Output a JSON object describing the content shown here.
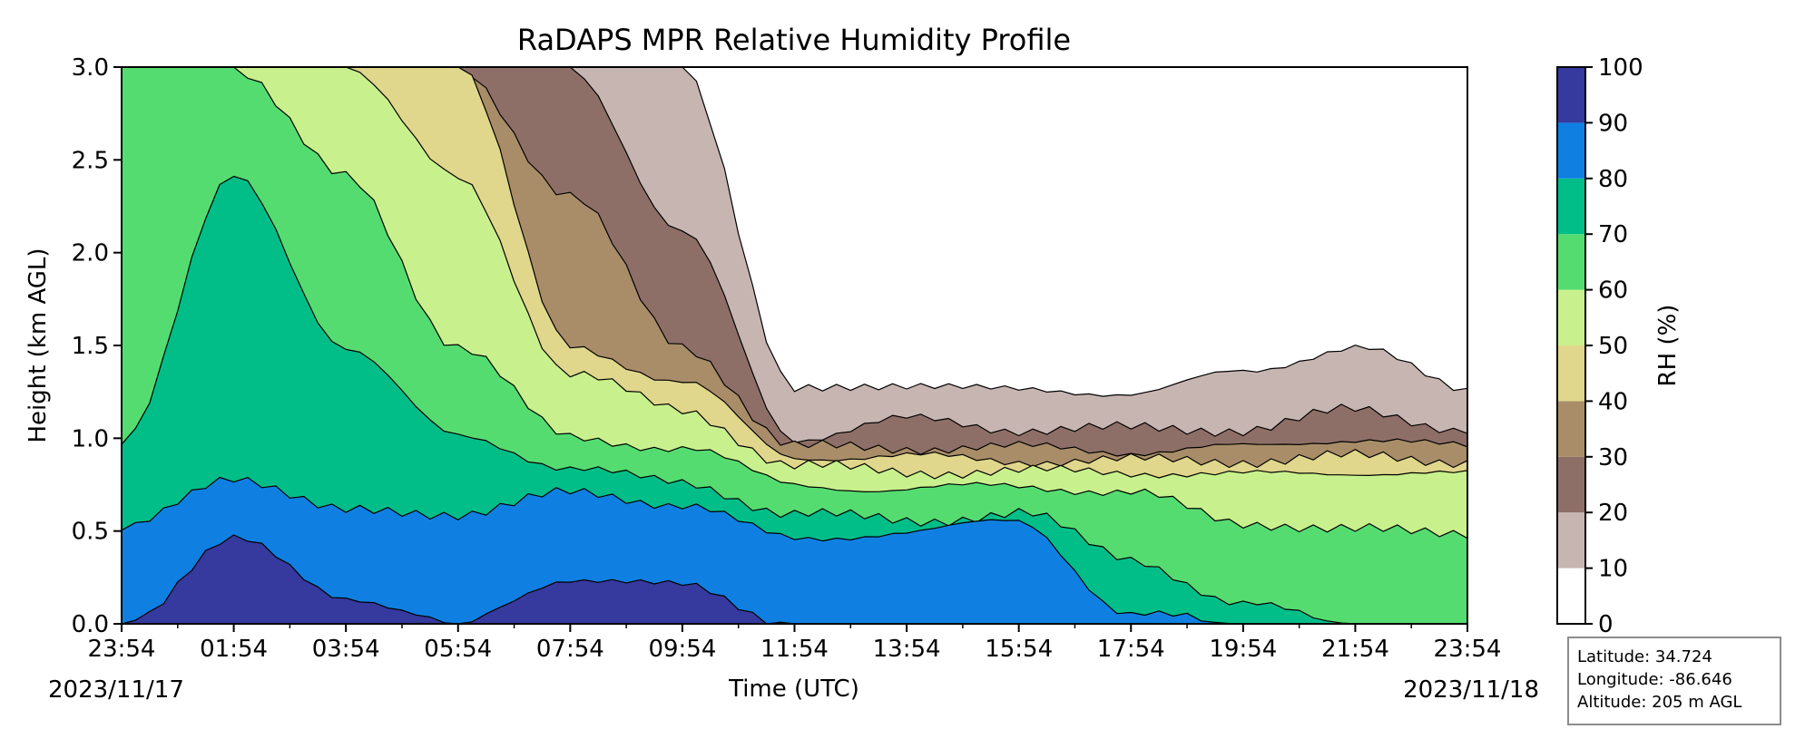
{
  "chart_data": {
    "type": "contourf",
    "title": "RaDAPS MPR Relative Humidity Profile",
    "xlabel": "Time (UTC)",
    "ylabel": "Height (km AGL)",
    "x_ticks": [
      "23:54",
      "01:54",
      "03:54",
      "05:54",
      "07:54",
      "09:54",
      "11:54",
      "13:54",
      "15:54",
      "17:54",
      "19:54",
      "21:54",
      "23:54"
    ],
    "start_date": "2023/11/17",
    "end_date": "2023/11/18",
    "y_ticks": [
      "0.0",
      "0.5",
      "1.0",
      "1.5",
      "2.0",
      "2.5",
      "3.0"
    ],
    "ylim": [
      0,
      3
    ],
    "colorbar": {
      "label": "RH (%)",
      "ticks": [
        "0",
        "10",
        "20",
        "30",
        "40",
        "50",
        "60",
        "70",
        "80",
        "90",
        "100"
      ],
      "levels": [
        {
          "range": [
            0,
            10
          ],
          "color": "#ffffff"
        },
        {
          "range": [
            10,
            20
          ],
          "color": "#c7b5b2"
        },
        {
          "range": [
            20,
            30
          ],
          "color": "#8e6f67"
        },
        {
          "range": [
            30,
            40
          ],
          "color": "#a88d68"
        },
        {
          "range": [
            40,
            50
          ],
          "color": "#e0d68c"
        },
        {
          "range": [
            50,
            60
          ],
          "color": "#c8f18d"
        },
        {
          "range": [
            60,
            70
          ],
          "color": "#55dc71"
        },
        {
          "range": [
            70,
            80
          ],
          "color": "#01be89"
        },
        {
          "range": [
            80,
            90
          ],
          "color": "#0f80e2"
        },
        {
          "range": [
            90,
            100
          ],
          "color": "#36399e"
        }
      ]
    },
    "profiles_note": "approximate heights (km) of RH isolines along time tick positions",
    "isolines": [
      {
        "rh": 10,
        "heights_km": [
          3.0,
          3.0,
          3.0,
          3.0,
          3.0,
          3.0,
          1.25,
          1.3,
          1.25,
          1.25,
          1.35,
          1.5,
          1.25
        ]
      },
      {
        "rh": 20,
        "heights_km": [
          3.0,
          3.0,
          3.0,
          3.0,
          3.0,
          2.1,
          1.0,
          1.1,
          1.05,
          1.05,
          1.05,
          1.15,
          1.05
        ]
      },
      {
        "rh": 30,
        "heights_km": [
          3.0,
          3.0,
          3.0,
          3.0,
          2.3,
          1.5,
          0.95,
          0.95,
          0.95,
          0.93,
          0.95,
          1.0,
          0.95
        ]
      },
      {
        "rh": 40,
        "heights_km": [
          3.0,
          3.0,
          3.0,
          3.0,
          1.5,
          1.3,
          0.9,
          0.9,
          0.88,
          0.88,
          0.88,
          0.9,
          0.88
        ]
      },
      {
        "rh": 50,
        "heights_km": [
          3.0,
          3.0,
          3.0,
          2.4,
          1.35,
          1.15,
          0.85,
          0.82,
          0.82,
          0.82,
          0.8,
          0.82,
          0.8
        ]
      },
      {
        "rh": 60,
        "heights_km": [
          3.0,
          3.0,
          2.4,
          1.5,
          1.0,
          0.95,
          0.75,
          0.72,
          0.75,
          0.7,
          0.55,
          0.5,
          0.5
        ]
      },
      {
        "rh": 70,
        "heights_km": [
          1.0,
          2.4,
          1.5,
          1.0,
          0.85,
          0.75,
          0.6,
          0.55,
          0.6,
          0.35,
          0.1,
          0.0,
          0.0
        ]
      },
      {
        "rh": 80,
        "heights_km": [
          0.5,
          0.8,
          0.6,
          0.6,
          0.7,
          0.65,
          0.45,
          0.5,
          0.55,
          0.05,
          0.0,
          0.0,
          0.0
        ]
      },
      {
        "rh": 90,
        "heights_km": [
          0.0,
          0.45,
          0.15,
          0.0,
          0.25,
          0.2,
          0.0,
          0.0,
          0.0,
          0.0,
          0.0,
          0.0,
          0.0
        ]
      }
    ]
  },
  "info_box": {
    "latitude": "Latitude: 34.724",
    "longitude": "Longitude: -86.646",
    "altitude": "Altitude: 205 m AGL"
  }
}
